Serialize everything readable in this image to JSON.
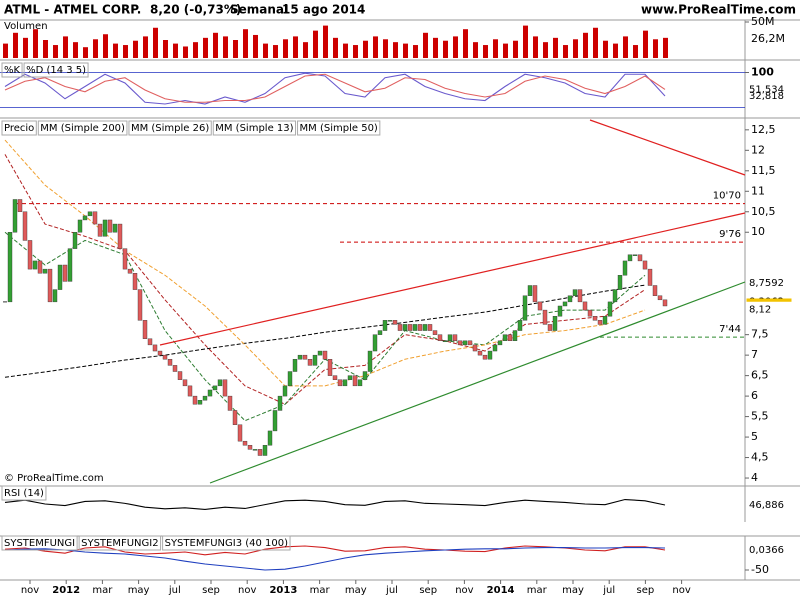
{
  "header": {
    "symbol": "ATML - ATMEL CORP.",
    "quote": "8,20 (-0,73%)",
    "period": "Semanal",
    "date": "15 ago 2014",
    "site": "www.ProRealTime.com"
  },
  "x_axis": {
    "labels": [
      "nov",
      "2012",
      "mar",
      "may",
      "jul",
      "sep",
      "nov",
      "2013",
      "mar",
      "may",
      "jul",
      "sep",
      "nov",
      "2014",
      "mar",
      "may",
      "jul",
      "sep",
      "nov"
    ]
  },
  "chart_data": [
    {
      "type": "bar",
      "title": "Volumen",
      "color": "#cc0000",
      "ylim": [
        0,
        50
      ],
      "yticks": [
        {
          "value": 50,
          "label": "50M"
        }
      ],
      "last": {
        "value": 26.2,
        "label": "26,2M"
      },
      "values": [
        20,
        35,
        28,
        40,
        25,
        18,
        30,
        22,
        15,
        26,
        33,
        20,
        18,
        24,
        30,
        42,
        25,
        20,
        16,
        22,
        28,
        35,
        30,
        25,
        40,
        32,
        20,
        18,
        26,
        30,
        22,
        38,
        45,
        28,
        20,
        18,
        24,
        30,
        26,
        22,
        20,
        18,
        35,
        28,
        24,
        30,
        40,
        22,
        18,
        26,
        20,
        24,
        45,
        30,
        22,
        28,
        18,
        26,
        35,
        42,
        24,
        20,
        30,
        18,
        38,
        26,
        28
      ]
    },
    {
      "type": "line",
      "ylim": [
        -30,
        130
      ],
      "yticks": [
        100
      ],
      "levels": [
        0,
        100
      ],
      "series": [
        {
          "name": "%K",
          "color": "#6a5acd",
          "values": [
            60,
            95,
            70,
            25,
            60,
            95,
            70,
            15,
            10,
            20,
            10,
            30,
            15,
            40,
            85,
            98,
            90,
            40,
            30,
            85,
            95,
            60,
            40,
            25,
            20,
            60,
            95,
            85,
            70,
            40,
            30,
            95,
            95,
            32.818
          ],
          "last_label": "32,818"
        },
        {
          "name": "%D (14 3 5)",
          "color": "#e06060",
          "values": [
            50,
            75,
            85,
            60,
            45,
            75,
            85,
            50,
            25,
            15,
            15,
            20,
            20,
            30,
            60,
            90,
            95,
            70,
            45,
            55,
            85,
            80,
            55,
            40,
            30,
            40,
            75,
            90,
            80,
            55,
            40,
            60,
            90,
            51.534
          ],
          "last_label": "51,534"
        }
      ]
    },
    {
      "type": "candlestick",
      "title": "Precio",
      "up_color": "#33a033",
      "down_color": "#e05a5a",
      "ylim": [
        3.83,
        12.74
      ],
      "yticks": [
        4,
        {
          "value": 4.5,
          "label": "4,5"
        },
        5,
        {
          "value": 5.5,
          "label": "5,5"
        },
        6,
        {
          "value": 6.5,
          "label": "6,5"
        },
        7,
        {
          "value": 7.5,
          "label": "7,5"
        },
        10,
        {
          "value": 10.5,
          "label": "10,5"
        },
        11,
        {
          "value": 11.5,
          "label": "11,5"
        },
        12,
        {
          "value": 12.5,
          "label": "12,5"
        }
      ],
      "values": [
        8.3,
        10.0,
        10.8,
        10.5,
        9.8,
        9.1,
        9.3,
        9.0,
        9.1,
        8.3,
        8.6,
        9.2,
        8.8,
        9.6,
        10.0,
        10.3,
        10.4,
        10.5,
        10.2,
        9.9,
        10.3,
        10.0,
        10.2,
        9.6,
        9.1,
        9.0,
        8.6,
        7.85,
        7.4,
        7.25,
        7.1,
        7.0,
        6.9,
        6.75,
        6.6,
        6.4,
        6.25,
        6.0,
        5.8,
        5.9,
        6.0,
        6.15,
        6.25,
        6.4,
        6.0,
        5.65,
        5.3,
        4.9,
        4.8,
        4.7,
        4.7,
        4.55,
        4.8,
        5.15,
        5.65,
        6.0,
        6.25,
        6.6,
        6.9,
        7.0,
        6.9,
        6.75,
        7.0,
        7.1,
        6.9,
        6.5,
        6.4,
        6.25,
        6.4,
        6.5,
        6.25,
        6.4,
        6.6,
        7.1,
        7.5,
        7.6,
        7.85,
        7.85,
        7.75,
        7.6,
        7.75,
        7.6,
        7.75,
        7.6,
        7.75,
        7.6,
        7.5,
        7.35,
        7.35,
        7.5,
        7.35,
        7.25,
        7.35,
        7.25,
        7.1,
        7.0,
        6.9,
        7.1,
        7.25,
        7.35,
        7.5,
        7.35,
        7.6,
        7.85,
        8.45,
        8.7,
        8.3,
        8.1,
        7.75,
        7.6,
        7.95,
        8.2,
        8.3,
        8.45,
        8.6,
        8.3,
        8.1,
        7.95,
        7.85,
        7.75,
        7.95,
        8.3,
        8.6,
        8.95,
        9.3,
        9.45,
        9.45,
        9.3,
        9.1,
        8.7,
        8.45,
        8.35,
        8.2
      ],
      "series": [
        {
          "name": "MM (Simple 200)",
          "color": "#000000",
          "values": [
            6.46,
            6.59,
            6.73,
            6.88,
            7.0,
            7.15,
            7.29,
            7.41,
            7.56,
            7.68,
            7.8,
            7.93,
            8.05,
            8.22,
            8.39,
            8.56,
            8.71
          ]
        },
        {
          "name": "MM (Simple 26)",
          "color": "#b22222",
          "values": [
            11.9,
            10.2,
            9.9,
            9.55,
            8.35,
            7.25,
            6.25,
            5.8,
            6.65,
            6.75,
            7.5,
            7.35,
            7.1,
            7.75,
            7.85,
            7.95,
            8.6
          ]
        },
        {
          "name": "MM (Simple 13)",
          "color": "#2e7d32",
          "values": [
            10.0,
            9.2,
            9.8,
            9.45,
            7.6,
            6.4,
            5.4,
            5.8,
            6.9,
            6.4,
            7.6,
            7.35,
            7.25,
            7.95,
            8.1,
            8.1,
            8.95
          ]
        },
        {
          "name": "MM (Simple 50)",
          "color": "#f0a030",
          "values": [
            12.25,
            11.15,
            10.4,
            9.55,
            8.95,
            8.2,
            7.25,
            6.25,
            6.25,
            6.5,
            6.9,
            7.1,
            7.25,
            7.5,
            7.6,
            7.75,
            8.1
          ]
        }
      ],
      "levels": [
        {
          "value": 10.7,
          "label": "10'70",
          "color": "#cc0000"
        },
        {
          "value": 9.76,
          "label": "9'76",
          "color": "#cc0000"
        },
        {
          "value": 7.44,
          "label": "7'44",
          "color": "#2e8b2e"
        }
      ],
      "price_labels": [
        {
          "value": 8.7592,
          "label": "8,7592",
          "color": "#000000"
        },
        {
          "value": 8.3062,
          "label": "8,3062",
          "color": "#b22222"
        },
        {
          "value": 8.2,
          "label": "8,20",
          "color": "#f2c200"
        },
        {
          "value": 8.12,
          "label": "8,12",
          "color": "#f0a030"
        }
      ],
      "watermark": "© ProRealTime.com"
    },
    {
      "type": "line",
      "title": "RSI (14)",
      "ylim": [
        0,
        100
      ],
      "series": [
        {
          "name": "RSI",
          "color": "#000000",
          "values": [
            55,
            62,
            50,
            45,
            58,
            60,
            52,
            40,
            35,
            38,
            33,
            40,
            36,
            48,
            60,
            62,
            58,
            48,
            46,
            58,
            60,
            52,
            50,
            48,
            45,
            55,
            62,
            58,
            55,
            50,
            48,
            64,
            60,
            46.886
          ],
          "last_label": "46,886"
        }
      ]
    },
    {
      "type": "line",
      "title": "SYSTEMFUNGI",
      "ylim": [
        -70,
        30
      ],
      "yticks": [
        -50
      ],
      "series": [
        {
          "name": "SYSTEMFUNGI2",
          "color": "#d02020",
          "values": [
            2,
            5,
            -3,
            -8,
            5,
            8,
            -5,
            -10,
            -8,
            -5,
            -12,
            -6,
            -10,
            2,
            8,
            10,
            6,
            -3,
            -2,
            6,
            8,
            2,
            0,
            -3,
            -4,
            5,
            10,
            8,
            5,
            0,
            -2,
            8,
            8,
            0.0366
          ],
          "last_label": "0,0366"
        },
        {
          "name": "SYSTEMFUNGI3 (40 100)",
          "color": "#1f3fbf",
          "values": [
            0,
            2,
            3,
            0,
            -5,
            -8,
            -10,
            -15,
            -20,
            -28,
            -35,
            -40,
            -45,
            -50,
            -48,
            -40,
            -30,
            -20,
            -12,
            -8,
            -5,
            -2,
            0,
            2,
            3,
            3,
            5,
            6,
            6,
            5,
            5,
            6,
            6,
            5
          ]
        }
      ]
    }
  ]
}
